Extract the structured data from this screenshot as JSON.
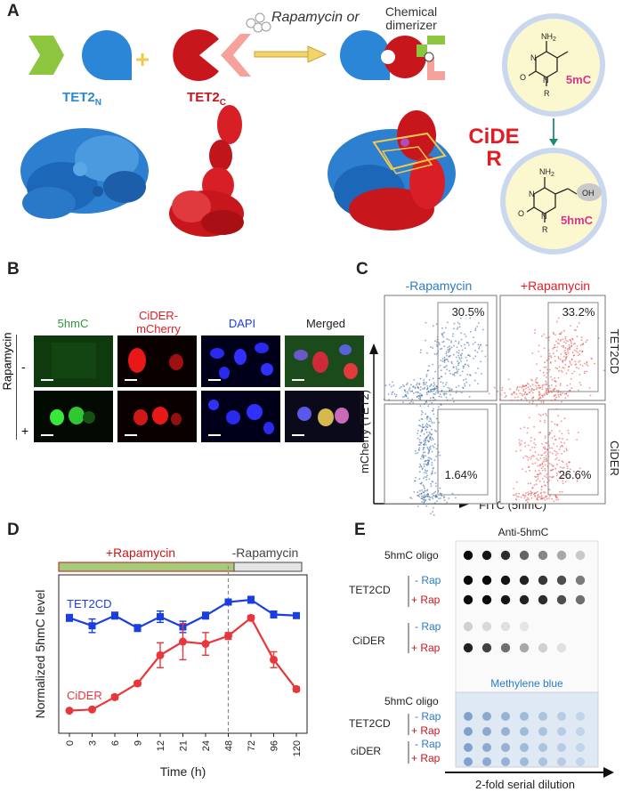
{
  "panel_a": {
    "label": "A",
    "tet2n": "TET2",
    "tet2n_sub": "N",
    "tet2c": "TET2",
    "tet2c_sub": "C",
    "plus": "+",
    "rap_text": "Rapamycin or",
    "chem_line1": "Chemical",
    "chem_line2": "dimerizer",
    "cider_line1": "CiDE",
    "cider_line2": "R",
    "mol1_label": "5mC",
    "mol2_label": "5hmC",
    "nh2": "NH",
    "nh2_sub": "2",
    "ring_o": "O",
    "ring_n": "N",
    "ring_r": "R",
    "oh": "OH",
    "colors": {
      "blue": "#2b86d8",
      "red": "#c8161d",
      "green": "#8cc63f",
      "pink": "#f4a29b",
      "gold": "#f3c94d"
    }
  },
  "panel_b": {
    "label": "B",
    "columns": [
      "5hmC",
      "CiDER-\nmCherry",
      "DAPI",
      "Merged"
    ],
    "row_title": "Rapamycin",
    "rows": [
      "-",
      "+"
    ]
  },
  "panel_c": {
    "label": "C",
    "col_minus": "-Rapamycin",
    "col_plus": "+Rapamycin",
    "row_top": "TET2CD",
    "row_bottom": "CiDER",
    "ylabel": "mCherry (TET2)",
    "xlabel": "FITC (5hmC)",
    "pct": [
      "30.5%",
      "33.2%",
      "1.64%",
      "26.6%"
    ]
  },
  "panel_d": {
    "label": "D",
    "rap_on": "+Rapamycin",
    "rap_off": "-Rapamycin"
  },
  "panel_e": {
    "label": "E",
    "top_title": "Anti-5hmC",
    "bottom_title": "Methylene blue",
    "oligo": "5hmC oligo",
    "tet2cd": "TET2CD",
    "cider": "CiDER",
    "cider_lower": "ciDER",
    "minus_rap": "- Rap",
    "plus_rap": "+ Rap",
    "dilution": "2-fold serial dilution",
    "dot_intensity": {
      "oligo": [
        1.0,
        0.95,
        0.85,
        0.6,
        0.45,
        0.3,
        0.15
      ],
      "tet2cd_minus": [
        1.0,
        1.0,
        0.95,
        0.9,
        0.8,
        0.7,
        0.5
      ],
      "tet2cd_plus": [
        1.0,
        1.0,
        0.95,
        0.9,
        0.85,
        0.7,
        0.55
      ],
      "cider_minus": [
        0.12,
        0.08,
        0.05,
        0.03,
        0,
        0,
        0
      ],
      "cider_plus": [
        0.9,
        0.75,
        0.55,
        0.3,
        0.12,
        0.05,
        0
      ]
    }
  },
  "chart_data": {
    "type": "line",
    "title": "",
    "xlabel": "Time (h)",
    "ylabel": "Normalized 5hmC level",
    "categories": [
      "0",
      "3",
      "6",
      "9",
      "12",
      "21",
      "24",
      "48",
      "72",
      "96",
      "120"
    ],
    "ylim": [
      0,
      7
    ],
    "series": [
      {
        "name": "TET2CD",
        "color": "#1a3fe0",
        "values": [
          5.1,
          4.75,
          5.2,
          4.65,
          5.15,
          4.7,
          5.2,
          5.8,
          5.9,
          5.25,
          5.2
        ],
        "errors": [
          0.15,
          0.3,
          0.15,
          0.15,
          0.25,
          0.25,
          0.15,
          0.1,
          0.15,
          0.15,
          0.1
        ]
      },
      {
        "name": "CiDER",
        "color": "#e8363b",
        "values": [
          1.0,
          1.05,
          1.6,
          2.2,
          3.45,
          4.05,
          3.95,
          4.3,
          5.1,
          3.25,
          1.95
        ],
        "errors": [
          0.05,
          0.05,
          0.1,
          0.1,
          0.55,
          0.8,
          0.5,
          0.15,
          0.1,
          0.35,
          0.1
        ]
      }
    ],
    "divider_at": "48",
    "legend": "in-plot labels"
  }
}
